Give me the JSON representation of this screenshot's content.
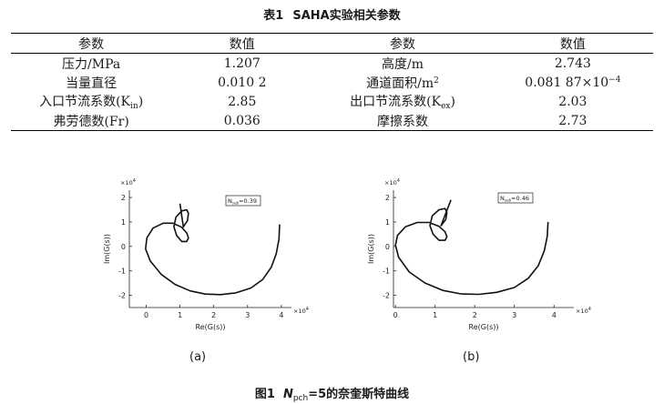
{
  "table": {
    "caption_label": "表1",
    "caption_title": "SAHA实验相关参数",
    "headers": [
      "参数",
      "数值",
      "参数",
      "数值"
    ],
    "rows": [
      {
        "p1": "压力/MPa",
        "v1": "1.207",
        "p2": "高度/m",
        "v2": "2.743"
      },
      {
        "p1": "当量直径",
        "v1": "0.010 2",
        "p2": "通道面积/m",
        "p2_sup": "2",
        "v2": "0.081 87×10",
        "v2_sup": "−4"
      },
      {
        "p1": "入口节流系数(K",
        "p1_sub": "in",
        "p1_end": ")",
        "v1": "2.85",
        "p2": "出口节流系数(K",
        "p2_sub": "ex",
        "p2_end": ")",
        "v2": "2.03"
      },
      {
        "p1": "弗劳德数(Fr)",
        "v1": "0.036",
        "p2": "摩擦系数",
        "v2": "2.73"
      }
    ]
  },
  "figure": {
    "caption_label": "图1",
    "caption_var": "N",
    "caption_var_sub": "pch",
    "caption_rest": "=5的奈奎斯特曲线"
  },
  "chart_data": [
    {
      "type": "line",
      "panel_label": "(a)",
      "xlabel": "Re(G(s))",
      "ylabel": "Im(G(s))",
      "x_multiplier": "×10",
      "x_multiplier_exp": "4",
      "y_multiplier": "×10",
      "y_multiplier_exp": "4",
      "xticks": [
        0,
        1,
        2,
        3,
        4
      ],
      "yticks": [
        -2,
        -1,
        0,
        1,
        2
      ],
      "xlim": [
        -0.5,
        4.3
      ],
      "ylim": [
        -2.5,
        2.3
      ],
      "annotation_base": "N",
      "annotation_sub": "sub",
      "annotation_value": "=0.39",
      "series": [
        {
          "x": [
            3.95,
            3.93,
            3.85,
            3.7,
            3.45,
            3.1,
            2.65,
            2.2,
            1.75,
            1.3,
            0.85,
            0.45,
            0.12,
            -0.02,
            0.02,
            0.2,
            0.5,
            0.8,
            1.05,
            1.2,
            1.25,
            1.2,
            1.05,
            0.9,
            0.82,
            0.88,
            1.05,
            1.2,
            1.25,
            1.22,
            1.1,
            1.0
          ],
          "y": [
            0.9,
            0.3,
            -0.3,
            -0.85,
            -1.35,
            -1.7,
            -1.9,
            -1.97,
            -1.95,
            -1.82,
            -1.55,
            -1.15,
            -0.6,
            -0.1,
            0.35,
            0.75,
            0.95,
            0.95,
            0.78,
            0.55,
            0.35,
            0.2,
            0.2,
            0.45,
            0.8,
            1.2,
            1.45,
            1.5,
            1.35,
            1.05,
            0.8,
            1.75
          ]
        }
      ]
    },
    {
      "type": "line",
      "panel_label": "(b)",
      "xlabel": "Re(G(s))",
      "ylabel": "Im(G(s))",
      "x_multiplier": "×10",
      "x_multiplier_exp": "4",
      "y_multiplier": "×10",
      "y_multiplier_exp": "4",
      "xticks": [
        0,
        1,
        2,
        3,
        4
      ],
      "yticks": [
        -2,
        -1,
        0,
        1,
        2
      ],
      "xlim": [
        -0.05,
        4.5
      ],
      "ylim": [
        -2.5,
        2.3
      ],
      "annotation_base": "N",
      "annotation_sub": "sub",
      "annotation_value": "=0.46",
      "series": [
        {
          "x": [
            3.85,
            3.83,
            3.75,
            3.6,
            3.35,
            3.0,
            2.55,
            2.1,
            1.65,
            1.2,
            0.75,
            0.35,
            0.08,
            0.0,
            0.05,
            0.25,
            0.55,
            0.85,
            1.1,
            1.25,
            1.3,
            1.25,
            1.1,
            0.95,
            0.87,
            0.93,
            1.1,
            1.25,
            1.3,
            1.27,
            1.15,
            1.4
          ],
          "y": [
            1.0,
            0.4,
            -0.2,
            -0.8,
            -1.3,
            -1.68,
            -1.88,
            -1.96,
            -1.94,
            -1.8,
            -1.5,
            -1.05,
            -0.45,
            0.05,
            0.45,
            0.8,
            0.98,
            0.98,
            0.82,
            0.6,
            0.4,
            0.25,
            0.25,
            0.5,
            0.85,
            1.25,
            1.5,
            1.55,
            1.4,
            1.1,
            0.85,
            1.9
          ]
        }
      ]
    }
  ]
}
